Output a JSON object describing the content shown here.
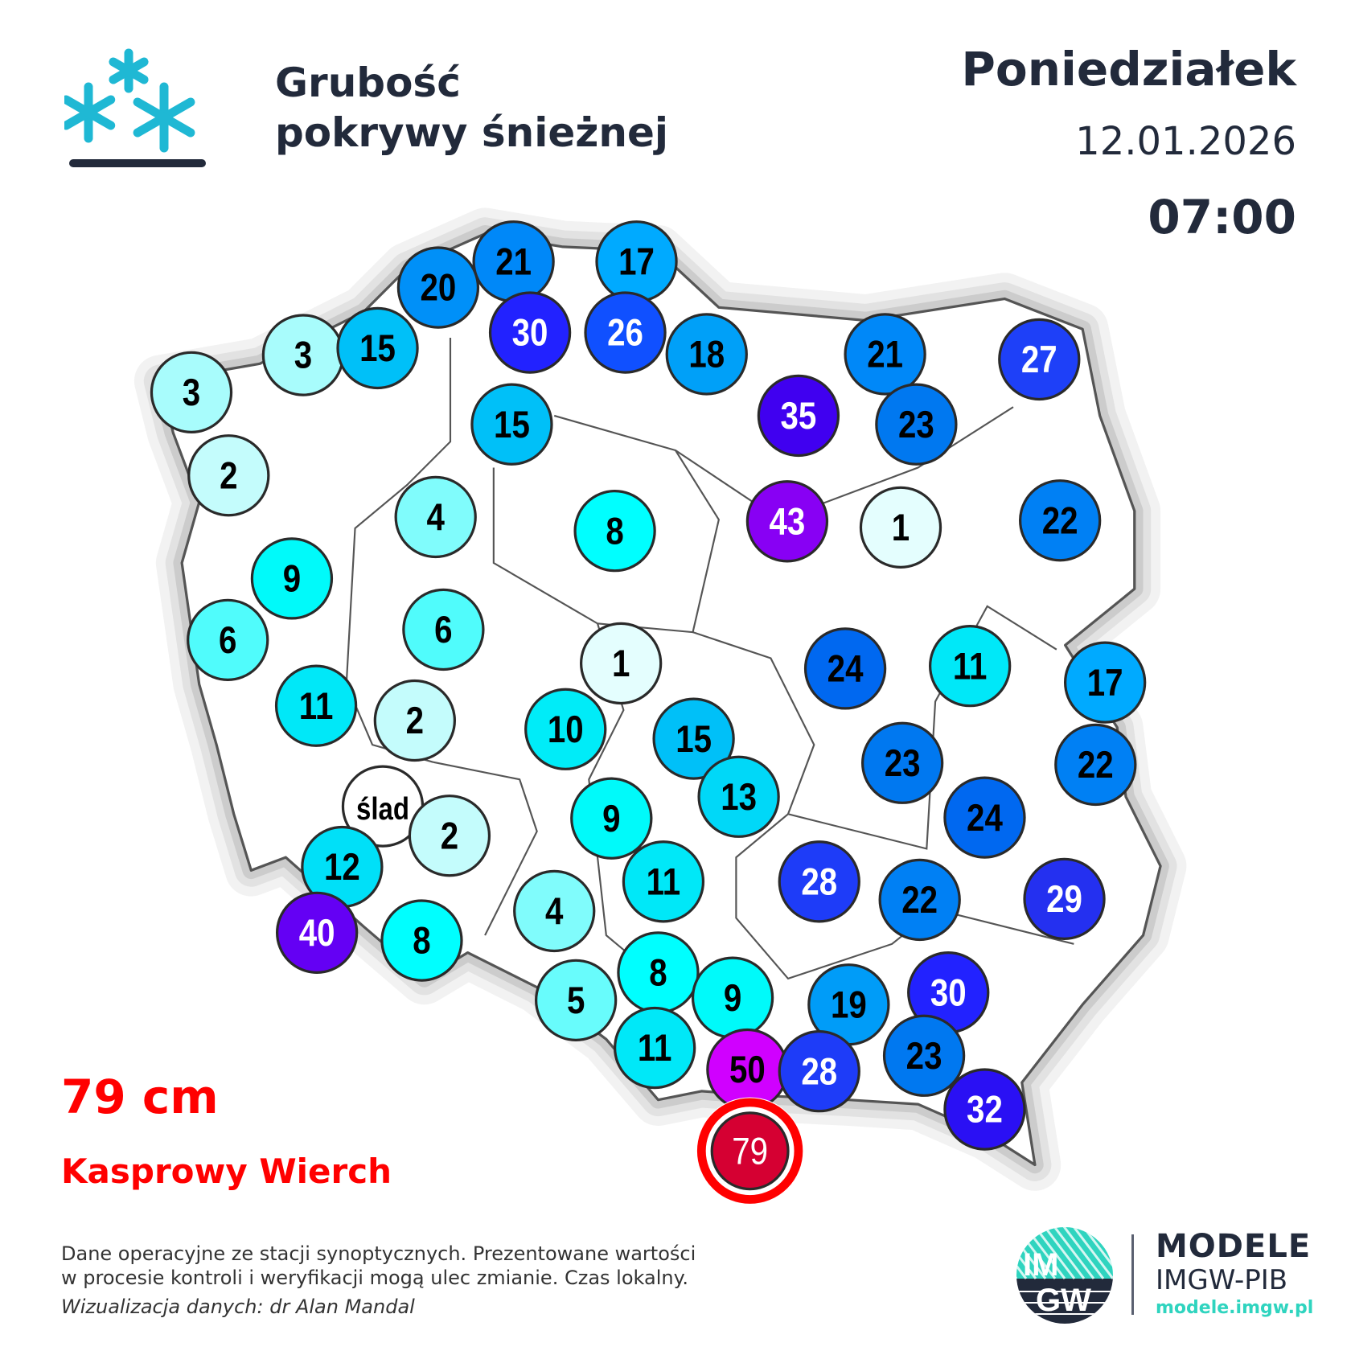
{
  "header": {
    "title_line1": "Grubość",
    "title_line2": "pokrywy śnieżnej",
    "day": "Poniedziałek",
    "date": "12.01.2026",
    "time": "07:00",
    "icon": "snowflakes-on-ground-icon"
  },
  "max": {
    "value": "79 cm",
    "station": "Kasprowy Wierch"
  },
  "footer": {
    "line1": "Dane operacyjne ze stacji synoptycznych. Prezentowane wartości",
    "line2": "w procesie kontroli i weryfikacji mogą ulec zmianie. Czas lokalny.",
    "credit": "Wizualizacja danych: dr Alan Mandal"
  },
  "brand": {
    "logo_text": "IMGW",
    "line1": "MODELE",
    "line2": "IMGW-PIB",
    "url": "modele.imgw.pl",
    "accent": "#2fd4bf",
    "dark": "#222a3b"
  },
  "colors": {
    "max_ring": "#ff0000",
    "max_fill": "#d50032",
    "icon": "#1fb8d4"
  },
  "stations": [
    {
      "v": "3",
      "c": "#a8fcfc"
    },
    {
      "v": "3",
      "c": "#a8fcfc"
    },
    {
      "v": "15",
      "c": "#00c0f8"
    },
    {
      "v": "20",
      "c": "#0090f8"
    },
    {
      "v": "21",
      "c": "#0088f8"
    },
    {
      "v": "17",
      "c": "#00aaff"
    },
    {
      "v": "30",
      "c": "#2222ff"
    },
    {
      "v": "26",
      "c": "#1050ff"
    },
    {
      "v": "18",
      "c": "#00a0f8"
    },
    {
      "v": "21",
      "c": "#0088f8"
    },
    {
      "v": "27",
      "c": "#1e40f8"
    },
    {
      "v": "2",
      "c": "#c4fcfc"
    },
    {
      "v": "15",
      "c": "#00c0f8"
    },
    {
      "v": "35",
      "c": "#4000f0"
    },
    {
      "v": "23",
      "c": "#0078f0"
    },
    {
      "v": "4",
      "c": "#80fcfc"
    },
    {
      "v": "8",
      "c": "#00ffff"
    },
    {
      "v": "43",
      "c": "#8800f4"
    },
    {
      "v": "1",
      "c": "#e4fefe"
    },
    {
      "v": "22",
      "c": "#0080f4"
    },
    {
      "v": "9",
      "c": "#00fafa"
    },
    {
      "v": "6",
      "c": "#50fcfc"
    },
    {
      "v": "6",
      "c": "#50fcfc"
    },
    {
      "v": "1",
      "c": "#e4fefe"
    },
    {
      "v": "24",
      "c": "#0068f0"
    },
    {
      "v": "11",
      "c": "#00e8f8"
    },
    {
      "v": "17",
      "c": "#00aaff"
    },
    {
      "v": "11",
      "c": "#00e8f8"
    },
    {
      "v": "2",
      "c": "#c4fcfc"
    },
    {
      "v": "10",
      "c": "#00ecf8"
    },
    {
      "v": "15",
      "c": "#00c0f8"
    },
    {
      "v": "23",
      "c": "#0078f0"
    },
    {
      "v": "22",
      "c": "#0080f4"
    },
    {
      "v": "ślad",
      "c": "#ffffff"
    },
    {
      "v": "13",
      "c": "#00d8f8"
    },
    {
      "v": "9",
      "c": "#00fafa"
    },
    {
      "v": "2",
      "c": "#c4fcfc"
    },
    {
      "v": "24",
      "c": "#0068f0"
    },
    {
      "v": "12",
      "c": "#00e0f8"
    },
    {
      "v": "11",
      "c": "#00e8f8"
    },
    {
      "v": "28",
      "c": "#1e3cf8"
    },
    {
      "v": "22",
      "c": "#0080f4"
    },
    {
      "v": "29",
      "c": "#2430f0"
    },
    {
      "v": "40",
      "c": "#6400f4"
    },
    {
      "v": "8",
      "c": "#00ffff"
    },
    {
      "v": "4",
      "c": "#80fcfc"
    },
    {
      "v": "8",
      "c": "#00ffff"
    },
    {
      "v": "9",
      "c": "#00fafa"
    },
    {
      "v": "5",
      "c": "#68fcfc"
    },
    {
      "v": "19",
      "c": "#009cf8"
    },
    {
      "v": "30",
      "c": "#2222ff"
    },
    {
      "v": "11",
      "c": "#00e8f8"
    },
    {
      "v": "50",
      "c": "#d000ff"
    },
    {
      "v": "28",
      "c": "#1e3cf8"
    },
    {
      "v": "23",
      "c": "#0078f0"
    },
    {
      "v": "32",
      "c": "#2a10f4"
    },
    {
      "v": "79",
      "c": "#d50032",
      "max": true
    }
  ]
}
